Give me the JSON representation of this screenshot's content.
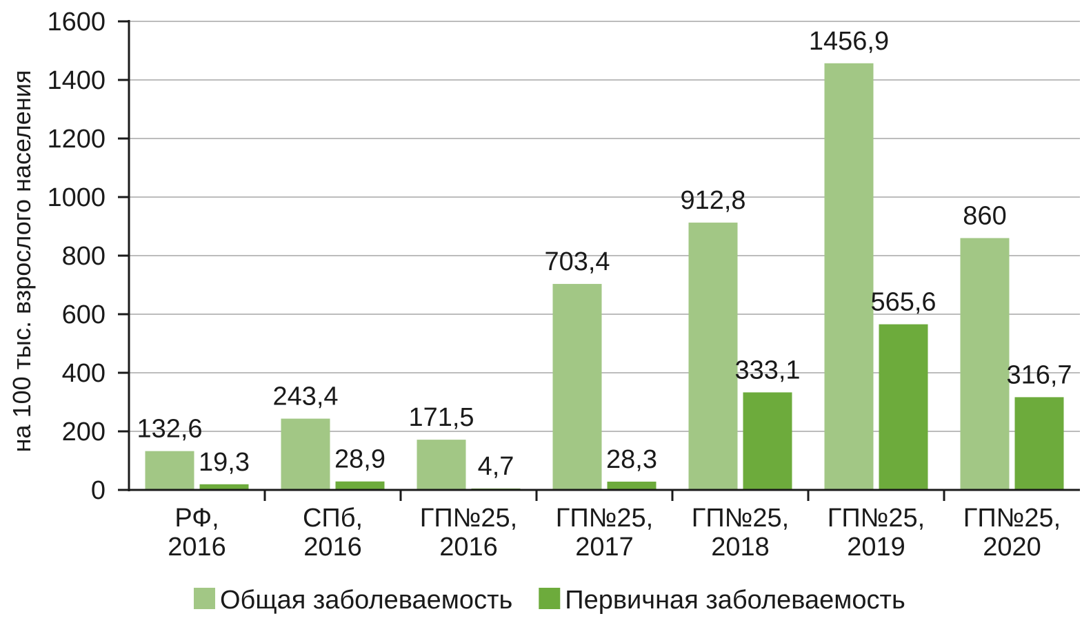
{
  "chart_data": {
    "type": "bar",
    "title": "",
    "xlabel": "",
    "ylabel": "на 100 тыс. взрослого населения",
    "ylim": [
      0,
      1600
    ],
    "yticks": [
      0,
      200,
      400,
      600,
      800,
      1000,
      1200,
      1400,
      1600
    ],
    "grid": true,
    "legend_position": "bottom",
    "categories": [
      [
        "РФ,",
        "2016"
      ],
      [
        "СПб,",
        "2016"
      ],
      [
        "ГП№25,",
        "2016"
      ],
      [
        "ГП№25,",
        "2017"
      ],
      [
        "ГП№25,",
        "2018"
      ],
      [
        "ГП№25,",
        "2019"
      ],
      [
        "ГП№25,",
        "2020"
      ]
    ],
    "series": [
      {
        "name": "Общая заболеваемость",
        "color": "#a2c785",
        "values": [
          132.6,
          243.4,
          171.5,
          703.4,
          912.8,
          1456.9,
          860
        ],
        "labels": [
          "132,6",
          "243,4",
          "171,5",
          "703,4",
          "912,8",
          "1456,9",
          "860"
        ]
      },
      {
        "name": "Первичная заболеваемость",
        "color": "#6dab3c",
        "values": [
          19.3,
          28.9,
          4.7,
          28.3,
          333.1,
          565.6,
          316.7
        ],
        "labels": [
          "19,3",
          "28,9",
          "4,7",
          "28,3",
          "333,1",
          "565,6",
          "316,7"
        ]
      }
    ]
  }
}
